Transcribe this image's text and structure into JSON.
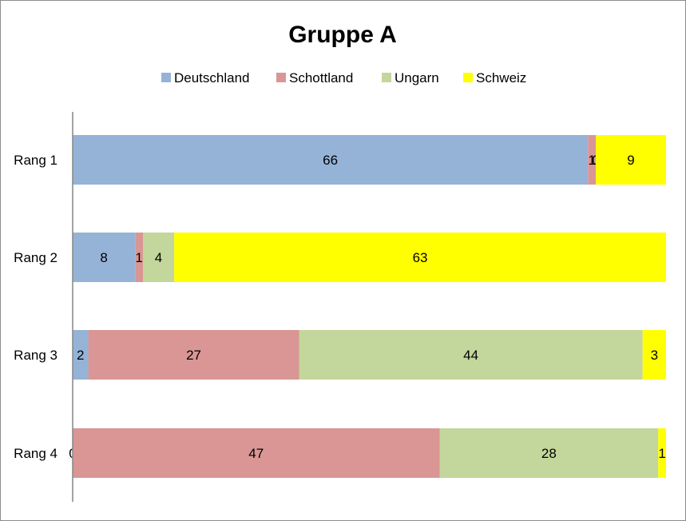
{
  "chart_data": {
    "type": "bar",
    "orientation": "horizontal",
    "stacked": true,
    "title": "Gruppe A",
    "xlabel": "",
    "ylabel": "",
    "categories": [
      "Rang 1",
      "Rang 2",
      "Rang 3",
      "Rang 4"
    ],
    "series": [
      {
        "name": "Deutschland",
        "color": "#95b3d7",
        "values": [
          66,
          8,
          2,
          0
        ]
      },
      {
        "name": "Schottland",
        "color": "#d99694",
        "values": [
          1,
          1,
          27,
          47
        ]
      },
      {
        "name": "Ungarn",
        "color": "#c3d69b",
        "values": [
          0,
          4,
          44,
          28
        ]
      },
      {
        "name": "Schweiz",
        "color": "#ffff00",
        "values": [
          9,
          63,
          3,
          1
        ]
      }
    ],
    "xlim": [
      0,
      76
    ],
    "grid": false,
    "legend_position": "top",
    "data_labels": true
  }
}
